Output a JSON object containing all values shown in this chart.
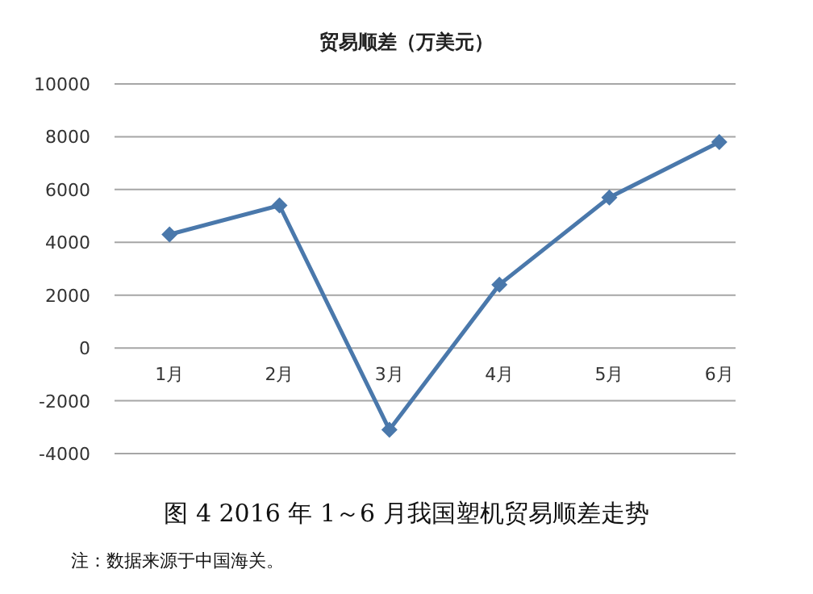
{
  "chart_data": {
    "type": "line",
    "title": "贸易顺差（万美元）",
    "categories": [
      "1月",
      "2月",
      "3月",
      "4月",
      "5月",
      "6月"
    ],
    "series": [
      {
        "color": "#4a78ab",
        "values": [
          4300,
          5400,
          -3100,
          2400,
          5700,
          7800
        ]
      }
    ],
    "ylim": [
      -4000,
      10000
    ],
    "yticks": [
      -4000,
      -2000,
      0,
      2000,
      4000,
      6000,
      8000,
      10000
    ],
    "grid": "y",
    "marker": "diamond",
    "annotations": [
      "图 4 2016 年 1～6 月我国塑机贸易顺差走势",
      "注：数据来源于中国海关。"
    ]
  }
}
